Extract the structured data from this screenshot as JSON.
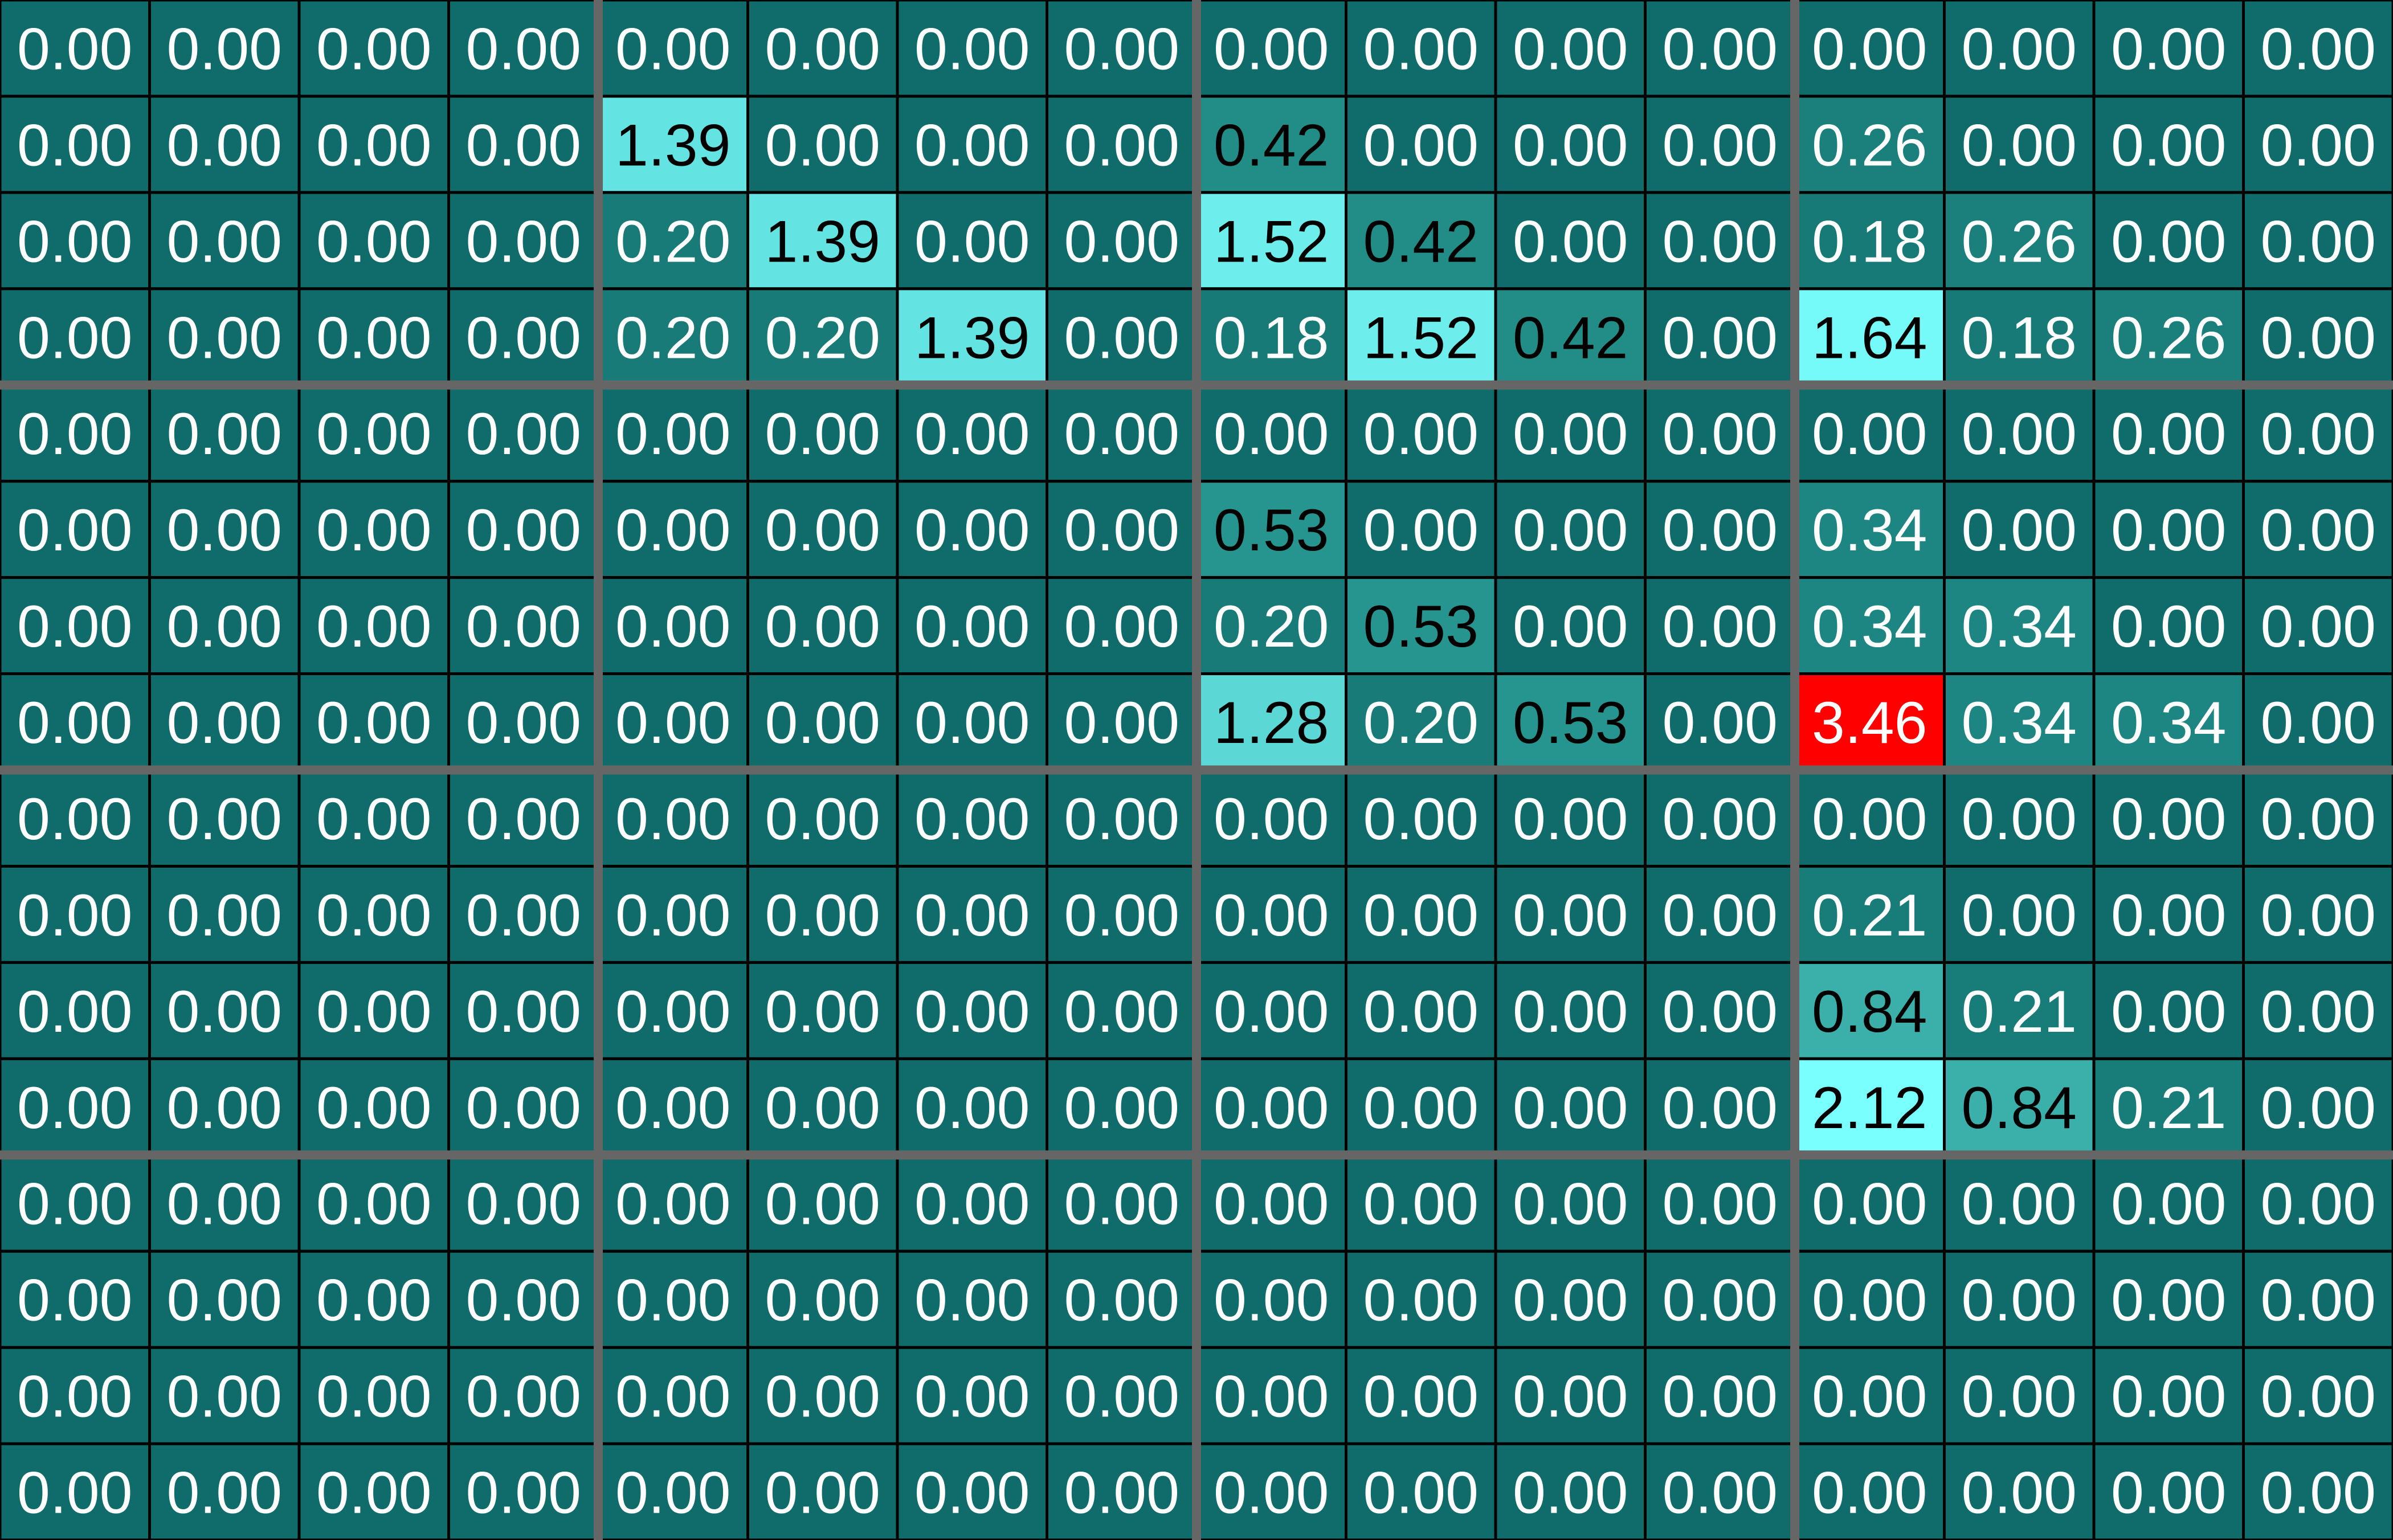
{
  "chart_data": {
    "type": "heatmap",
    "rows": 16,
    "cols": 16,
    "block_size": 4,
    "value_format": "2 decimals",
    "colors": {
      "zero": "#0f6c6a",
      "mid": "#2a9a94",
      "high": "#7affff",
      "max": "#ff0000",
      "cell_border": "#000000",
      "block_separator": "#666666",
      "text_light": "#ffffff",
      "text_dark": "#000000"
    },
    "values": [
      [
        0,
        0,
        0,
        0,
        0,
        0,
        0,
        0,
        0,
        0,
        0,
        0,
        0,
        0,
        0,
        0
      ],
      [
        0,
        0,
        0,
        0,
        1.39,
        0,
        0,
        0,
        0.42,
        0,
        0,
        0,
        0.26,
        0,
        0,
        0
      ],
      [
        0,
        0,
        0,
        0,
        0.2,
        1.39,
        0,
        0,
        1.52,
        0.42,
        0,
        0,
        0.18,
        0.26,
        0,
        0
      ],
      [
        0,
        0,
        0,
        0,
        0.2,
        0.2,
        1.39,
        0,
        0.18,
        1.52,
        0.42,
        0,
        1.64,
        0.18,
        0.26,
        0
      ],
      [
        0,
        0,
        0,
        0,
        0,
        0,
        0,
        0,
        0,
        0,
        0,
        0,
        0,
        0,
        0,
        0
      ],
      [
        0,
        0,
        0,
        0,
        0,
        0,
        0,
        0,
        0.53,
        0,
        0,
        0,
        0.34,
        0,
        0,
        0
      ],
      [
        0,
        0,
        0,
        0,
        0,
        0,
        0,
        0,
        0.2,
        0.53,
        0,
        0,
        0.34,
        0.34,
        0,
        0
      ],
      [
        0,
        0,
        0,
        0,
        0,
        0,
        0,
        0,
        1.28,
        0.2,
        0.53,
        0,
        3.46,
        0.34,
        0.34,
        0
      ],
      [
        0,
        0,
        0,
        0,
        0,
        0,
        0,
        0,
        0,
        0,
        0,
        0,
        0,
        0,
        0,
        0
      ],
      [
        0,
        0,
        0,
        0,
        0,
        0,
        0,
        0,
        0,
        0,
        0,
        0,
        0.21,
        0,
        0,
        0
      ],
      [
        0,
        0,
        0,
        0,
        0,
        0,
        0,
        0,
        0,
        0,
        0,
        0,
        0.84,
        0.21,
        0,
        0
      ],
      [
        0,
        0,
        0,
        0,
        0,
        0,
        0,
        0,
        0,
        0,
        0,
        0,
        2.12,
        0.84,
        0.21,
        0
      ],
      [
        0,
        0,
        0,
        0,
        0,
        0,
        0,
        0,
        0,
        0,
        0,
        0,
        0,
        0,
        0,
        0
      ],
      [
        0,
        0,
        0,
        0,
        0,
        0,
        0,
        0,
        0,
        0,
        0,
        0,
        0,
        0,
        0,
        0
      ],
      [
        0,
        0,
        0,
        0,
        0,
        0,
        0,
        0,
        0,
        0,
        0,
        0,
        0,
        0,
        0,
        0
      ],
      [
        0,
        0,
        0,
        0,
        0,
        0,
        0,
        0,
        0,
        0,
        0,
        0,
        0,
        0,
        0,
        0
      ]
    ]
  }
}
